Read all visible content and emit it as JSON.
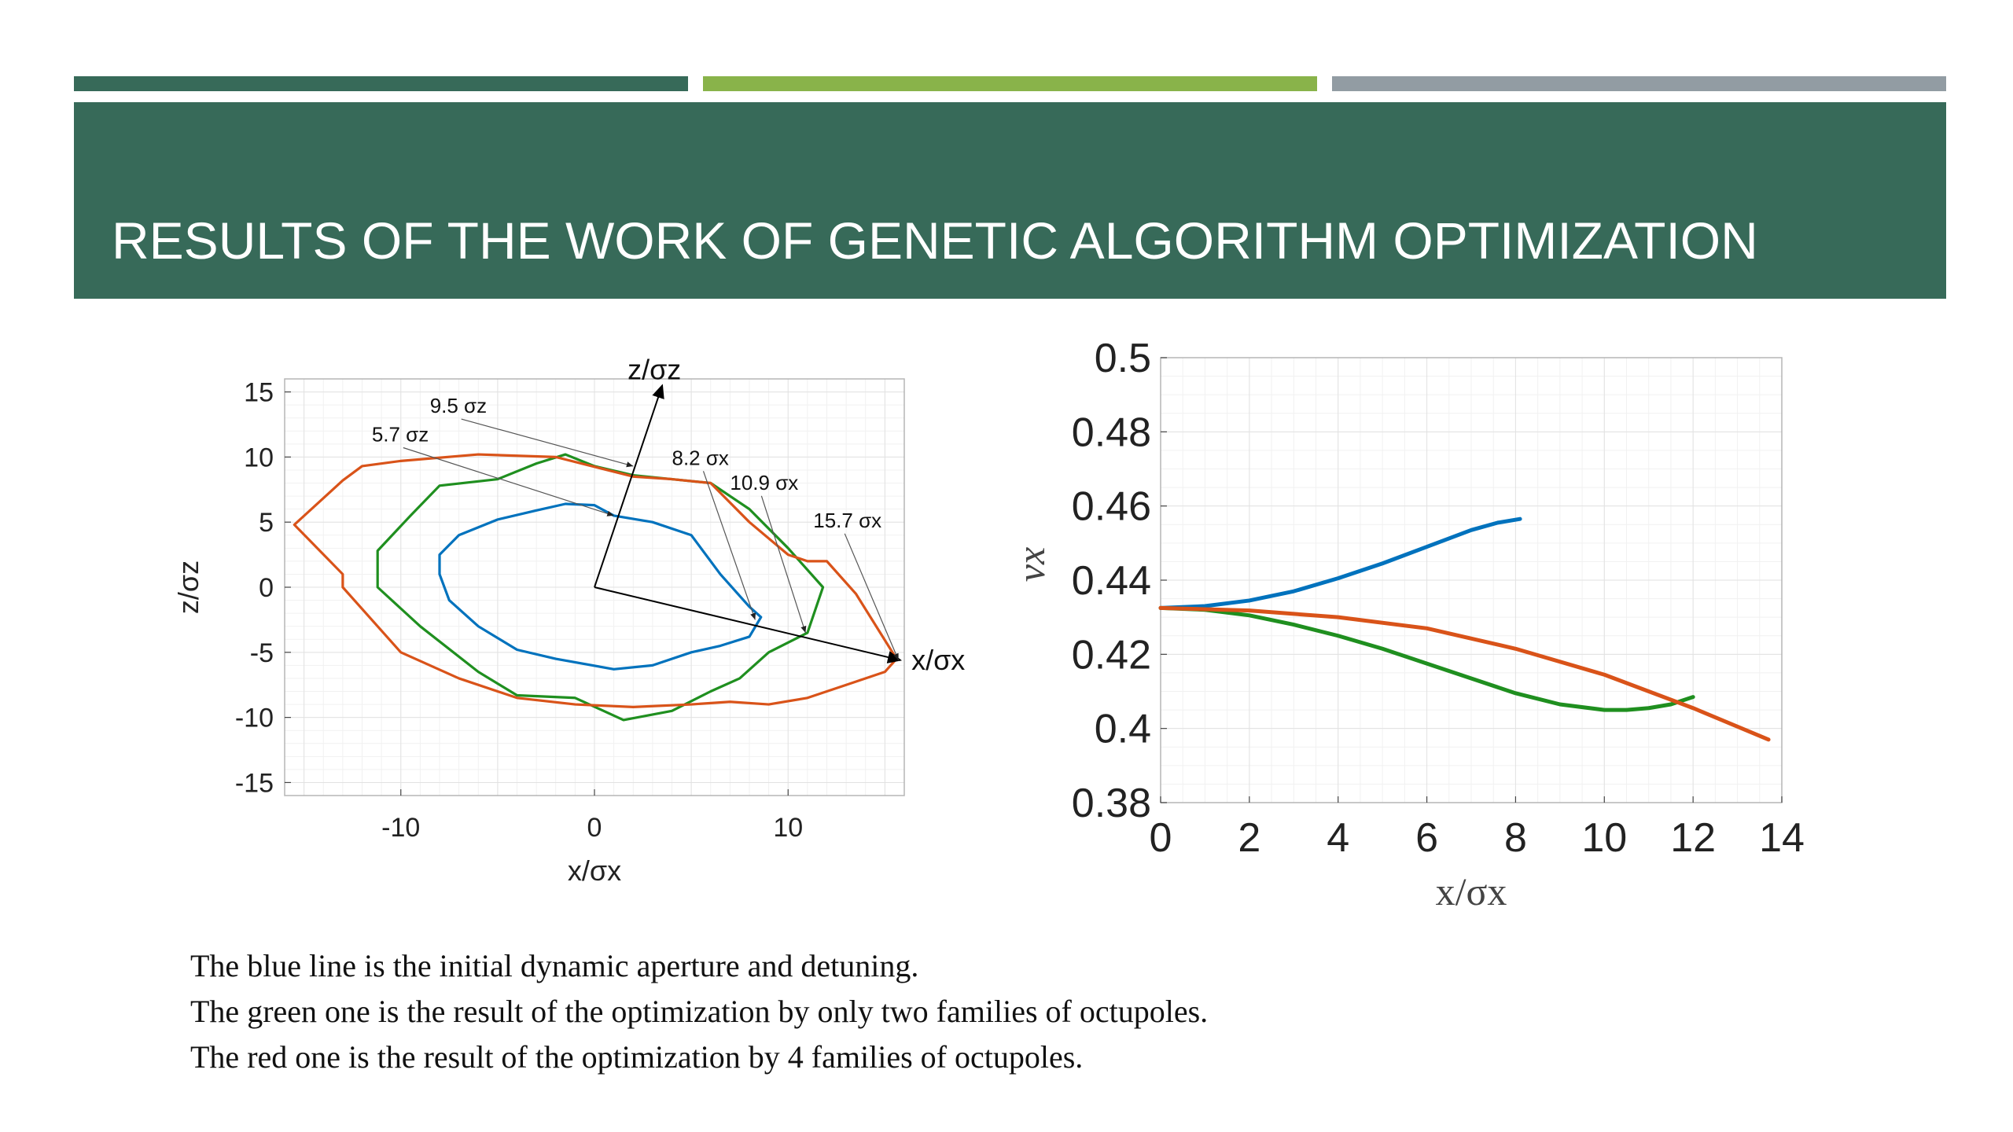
{
  "slide": {
    "title": "RESULTS OF THE WORK OF GENETIC ALGORITHM OPTIMIZATION",
    "caption_lines": [
      "The blue line is the initial dynamic aperture and detuning.",
      "The green one is the result of the optimization by only two families of octupoles.",
      "The red one is the result of the optimization by 4 families of octupoles."
    ],
    "accent_colors": {
      "dark_green": "#376a59",
      "light_green": "#89b34a",
      "gray": "#929ca3"
    }
  },
  "chart_data": [
    {
      "type": "line",
      "xlabel": "x/σx",
      "ylabel": "z/σz",
      "xlim": [
        -16,
        16
      ],
      "ylim": [
        -16,
        16
      ],
      "xticks": [
        -10,
        0,
        10
      ],
      "yticks": [
        15,
        10,
        5,
        0,
        -5,
        -10,
        -15
      ],
      "xtick_labels": [
        "-10",
        "0",
        "10"
      ],
      "ytick_labels": [
        "15",
        "10",
        "5",
        "0",
        "-5",
        "-10",
        "-15"
      ],
      "grid": true,
      "series": [
        {
          "color": "#0072bd",
          "x": [
            -1.5,
            0,
            1,
            3,
            5,
            6.5,
            8,
            8.6,
            8,
            6.5,
            5,
            3,
            1,
            -2,
            -4,
            -6,
            -7.5,
            -8,
            -8,
            -7,
            -5,
            -3
          ],
          "y": [
            6.4,
            6.3,
            5.5,
            5,
            4,
            1,
            -1.5,
            -2.3,
            -3.8,
            -4.5,
            -5,
            -6,
            -6.3,
            -5.5,
            -4.8,
            -3,
            -1,
            1,
            2.5,
            4,
            5.2,
            5.9
          ]
        },
        {
          "color": "#1f8f1f",
          "x": [
            -1.5,
            0,
            2,
            4,
            6,
            8,
            10,
            11.8,
            11,
            9,
            7.5,
            6,
            4,
            1.5,
            -1,
            -4,
            -6,
            -9,
            -11.2,
            -11.2,
            -9.5,
            -8,
            -5,
            -3
          ],
          "y": [
            10.2,
            9.3,
            8.6,
            8.3,
            8,
            6,
            3,
            0,
            -3.5,
            -5,
            -7,
            -8,
            -9.5,
            -10.2,
            -8.5,
            -8.3,
            -6.5,
            -3,
            0,
            2.8,
            5.5,
            7.8,
            8.3,
            9.5
          ]
        },
        {
          "color": "#d95319",
          "x": [
            -10,
            -6,
            -2,
            2,
            4,
            6,
            8,
            10,
            11,
            12,
            13.5,
            15.6,
            15,
            13,
            11,
            9,
            7,
            5,
            2,
            -1,
            -4,
            -7,
            -10,
            -13,
            -13,
            -15.5,
            -13,
            -12
          ],
          "y": [
            9.7,
            10.2,
            10,
            8.5,
            8.3,
            8,
            5,
            2.5,
            2,
            2,
            -0.5,
            -5.5,
            -6.5,
            -7.5,
            -8.5,
            -9,
            -8.8,
            -9,
            -9.2,
            -9,
            -8.5,
            -7,
            -5,
            0,
            1,
            4.8,
            8.2,
            9.3
          ]
        }
      ],
      "annotations": [
        {
          "text": "9.5 σz",
          "target": [
            2,
            9.3
          ]
        },
        {
          "text": "5.7 σz",
          "target": [
            1,
            5.5
          ]
        },
        {
          "text": "8.2 σx",
          "target": [
            8.3,
            -2.5
          ]
        },
        {
          "text": "10.9 σx",
          "target": [
            10.9,
            -3.5
          ]
        },
        {
          "text": "15.7 σx",
          "target": [
            15.7,
            -5.6
          ]
        }
      ],
      "arrows": [
        {
          "label": "z/σz",
          "from": [
            0,
            0
          ],
          "to": [
            3.5,
            15.5
          ]
        },
        {
          "label": "x/σx",
          "from": [
            0,
            0
          ],
          "to": [
            15.8,
            -5.6
          ]
        }
      ]
    },
    {
      "type": "line",
      "xlabel": "x/σx",
      "ylabel": "νx",
      "xlim": [
        0,
        14
      ],
      "ylim": [
        0.38,
        0.5
      ],
      "xticks": [
        0,
        2,
        4,
        6,
        8,
        10,
        12,
        14
      ],
      "yticks": [
        0.5,
        0.48,
        0.46,
        0.44,
        0.42,
        0.4,
        0.38
      ],
      "xtick_labels": [
        "0",
        "2",
        "4",
        "6",
        "8",
        "10",
        "12",
        "14"
      ],
      "ytick_labels": [
        "0.5",
        "0.48",
        "0.46",
        "0.44",
        "0.42",
        "0.4",
        "0.38"
      ],
      "grid": true,
      "series": [
        {
          "color": "#0072bd",
          "x": [
            0,
            1,
            2,
            3,
            4,
            5,
            6,
            7,
            7.6,
            8.1
          ],
          "y": [
            0.4325,
            0.433,
            0.4345,
            0.437,
            0.4405,
            0.4445,
            0.449,
            0.4535,
            0.4555,
            0.4565
          ]
        },
        {
          "color": "#1f8f1f",
          "x": [
            0,
            1,
            2,
            3,
            4,
            5,
            6,
            7,
            8,
            9,
            10,
            10.5,
            11,
            11.5,
            12
          ],
          "y": [
            0.4325,
            0.432,
            0.4305,
            0.428,
            0.425,
            0.4215,
            0.4175,
            0.4135,
            0.4095,
            0.4065,
            0.405,
            0.405,
            0.4055,
            0.4065,
            0.4085
          ]
        },
        {
          "color": "#d95319",
          "x": [
            0,
            2,
            4,
            6,
            8,
            10,
            12,
            13.7
          ],
          "y": [
            0.4325,
            0.4318,
            0.43,
            0.427,
            0.4215,
            0.4145,
            0.4055,
            0.397
          ]
        }
      ]
    }
  ]
}
